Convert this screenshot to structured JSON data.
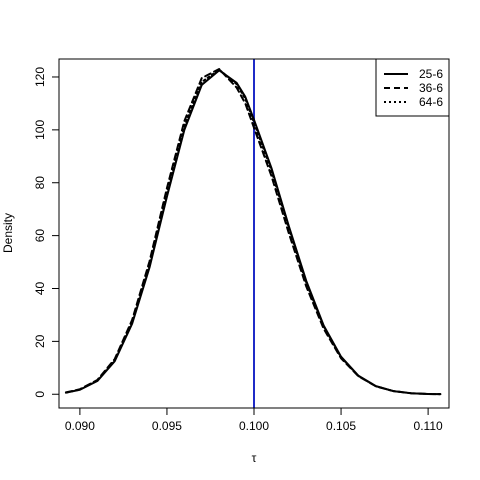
{
  "chart_data": {
    "type": "line",
    "title": "",
    "xlabel": "τ",
    "ylabel": "Density",
    "xlim": [
      0.0888,
      0.1112
    ],
    "ylim": [
      -5.2,
      126.8
    ],
    "xticks": [
      0.09,
      0.095,
      0.1,
      0.105,
      0.11
    ],
    "xtick_labels": [
      "0.090",
      "0.095",
      "0.100",
      "0.105",
      "0.110"
    ],
    "yticks": [
      0,
      20,
      40,
      60,
      80,
      100,
      120
    ],
    "ytick_labels": [
      "0",
      "20",
      "40",
      "60",
      "80",
      "100",
      "120"
    ],
    "grid": false,
    "legend_position": "top-right",
    "reference_line": {
      "x": 0.1,
      "color": "#1f2bc7"
    },
    "series": [
      {
        "name": "25-6",
        "line_style": "solid",
        "color": "#000000",
        "x": [
          0.0892,
          0.09,
          0.091,
          0.092,
          0.093,
          0.094,
          0.095,
          0.096,
          0.097,
          0.098,
          0.099,
          0.0995,
          0.1,
          0.101,
          0.102,
          0.103,
          0.104,
          0.105,
          0.106,
          0.107,
          0.108,
          0.109,
          0.11,
          0.1107
        ],
        "y": [
          0.6,
          1.7,
          5.0,
          12.5,
          26.7,
          48.0,
          74.8,
          100.0,
          117.0,
          122.5,
          117.8,
          112.5,
          103.8,
          85.6,
          63.6,
          42.9,
          26.0,
          14.2,
          7.0,
          3.1,
          1.2,
          0.4,
          0.1,
          0.04
        ]
      },
      {
        "name": "36-6",
        "line_style": "dashed",
        "color": "#000000",
        "x": [
          0.0892,
          0.09,
          0.091,
          0.092,
          0.093,
          0.094,
          0.095,
          0.096,
          0.097,
          0.098,
          0.099,
          0.0995,
          0.1,
          0.101,
          0.102,
          0.103,
          0.104,
          0.105,
          0.106,
          0.107,
          0.108,
          0.109,
          0.11,
          0.1107
        ],
        "y": [
          0.7,
          1.9,
          5.4,
          13.3,
          28.1,
          50.3,
          78.0,
          103.3,
          119.6,
          123.0,
          116.0,
          110.0,
          100.8,
          82.6,
          60.9,
          40.8,
          24.8,
          13.6,
          6.8,
          3.0,
          1.2,
          0.4,
          0.1,
          0.04
        ]
      },
      {
        "name": "64-6",
        "line_style": "dotted",
        "color": "#000000",
        "x": [
          0.0892,
          0.09,
          0.091,
          0.092,
          0.093,
          0.094,
          0.095,
          0.096,
          0.097,
          0.098,
          0.099,
          0.0995,
          0.1,
          0.101,
          0.102,
          0.103,
          0.104,
          0.105,
          0.106,
          0.107,
          0.108,
          0.109,
          0.11,
          0.1107
        ],
        "y": [
          0.6,
          1.8,
          5.2,
          12.9,
          27.3,
          49.1,
          76.2,
          101.4,
          118.1,
          122.8,
          117.3,
          111.8,
          102.7,
          84.6,
          62.7,
          42.2,
          25.7,
          14.0,
          6.9,
          3.0,
          1.2,
          0.4,
          0.1,
          0.04
        ]
      }
    ]
  }
}
